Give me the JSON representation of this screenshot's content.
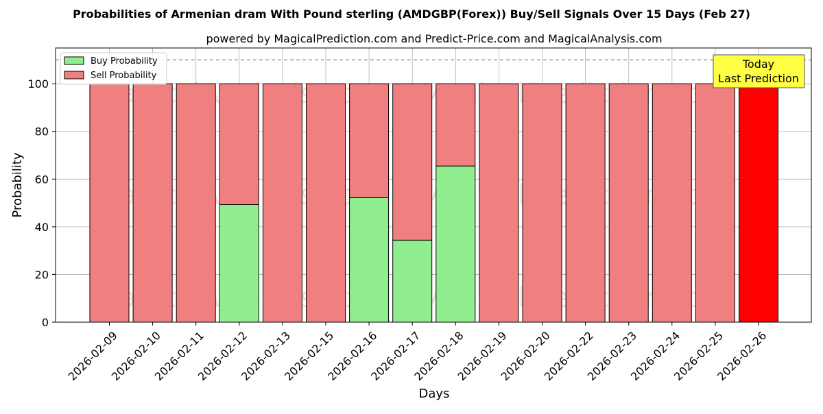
{
  "chart_data": {
    "type": "bar",
    "stacked": true,
    "title": "Probabilities of Armenian dram With Pound sterling (AMDGBP(Forex)) Buy/Sell Signals Over 15 Days (Feb 27)",
    "subtitle": "powered by MagicalPrediction.com and Predict-Price.com and MagicalAnalysis.com",
    "xlabel": "Days",
    "ylabel": "Probability",
    "ylim": [
      0,
      115
    ],
    "yticks": [
      0,
      20,
      40,
      60,
      80,
      100
    ],
    "reference_line": 110,
    "grid": true,
    "legend_position": "top-left",
    "categories": [
      "2026-02-09",
      "2026-02-10",
      "2026-02-11",
      "2026-02-12",
      "2026-02-13",
      "2026-02-15",
      "2026-02-16",
      "2026-02-17",
      "2026-02-18",
      "2026-02-19",
      "2026-02-20",
      "2026-02-22",
      "2026-02-23",
      "2026-02-24",
      "2026-02-25",
      "2026-02-26"
    ],
    "series": [
      {
        "name": "Buy Probability",
        "color": "#90ee90",
        "values": [
          0,
          0,
          0,
          49.3,
          0,
          0,
          52.2,
          34.4,
          65.5,
          0,
          0,
          0,
          0,
          0,
          0,
          0
        ]
      },
      {
        "name": "Sell Probability",
        "color": "#f08080",
        "values": [
          100,
          100,
          100,
          50.7,
          100,
          100,
          47.8,
          65.6,
          34.5,
          100,
          100,
          100,
          100,
          100,
          100,
          100
        ]
      }
    ],
    "highlight": {
      "index": 15,
      "color": "#ff0000",
      "label_line1": "Today",
      "label_line2": "Last Prediction",
      "label_bg": "#ffff44"
    },
    "watermarks": [
      "MagicalAnalysis.com",
      "MagicalPrediction.com"
    ]
  }
}
